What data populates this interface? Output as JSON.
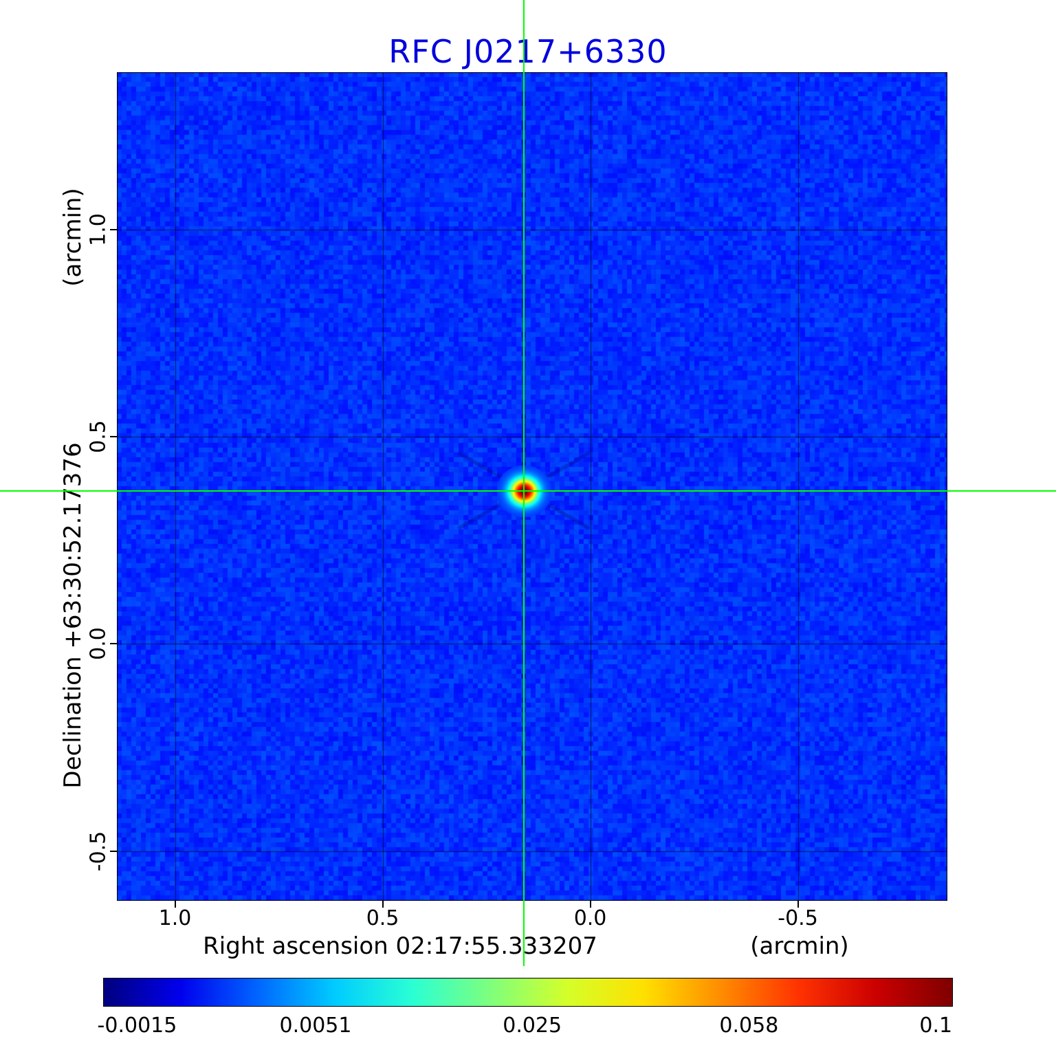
{
  "title": {
    "text": "RFC J0217+6330",
    "color": "#0000dd"
  },
  "axes": {
    "y_unit": "(arcmin)",
    "y_label": "Declination  +63:30:52.17376",
    "x_label": "Right ascension  02:17:55.333207",
    "x_unit": "(arcmin)",
    "x_ticks": [
      "1.0",
      "0.5",
      "0.0",
      "-0.5"
    ],
    "y_ticks": [
      "1.0",
      "0.5",
      "0.0",
      "-0.5"
    ]
  },
  "colorbar": {
    "tick_labels": [
      "-0.0015",
      "0.0051",
      "0.025",
      "0.058",
      "0.1"
    ],
    "colors": [
      "#00007f",
      "#0000ee",
      "#0066ff",
      "#00ccff",
      "#2affd4",
      "#7dff7d",
      "#d4ff2a",
      "#ffe000",
      "#ff8c00",
      "#ff3300",
      "#cc0000",
      "#7f0000"
    ]
  },
  "chart_data": {
    "type": "heatmap",
    "title": "RFC J0217+6330",
    "xlabel": "Right ascension 02:17:55.333207 (arcmin)",
    "ylabel": "Declination +63:30:52.17376 (arcmin)",
    "x_range": [
      1.14,
      -0.86
    ],
    "y_range": [
      1.38,
      -0.62
    ],
    "x_tick_values": [
      1.0,
      0.5,
      0.0,
      -0.5
    ],
    "y_tick_values": [
      1.0,
      0.5,
      0.0,
      -0.5
    ],
    "grid": true,
    "colormap": "jet",
    "value_ticks": [
      -0.0015,
      0.0051,
      0.025,
      0.058,
      0.1
    ],
    "value_range": [
      -0.0015,
      0.1
    ],
    "background_level": 0.0,
    "peak": {
      "x_arcmin": 0.16,
      "y_arcmin": 0.37,
      "value": 0.1
    },
    "crosshair": {
      "x_arcmin": 0.16,
      "y_arcmin": 0.37,
      "color": "#00ff00"
    }
  }
}
